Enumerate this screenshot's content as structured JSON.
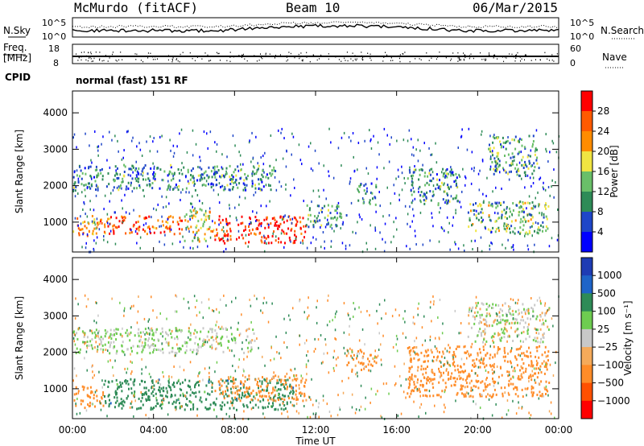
{
  "header": {
    "station": "McMurdo (fitACF)",
    "beam": "Beam 10",
    "date": "06/Mar/2015",
    "cpid_label": "CPID",
    "cpid_text": "normal (fast) 151 RF"
  },
  "aux_labels": {
    "nsky": "N.Sky",
    "nsearch": "N.Search",
    "freq": "Freq.",
    "freq_unit": "[MHz]",
    "nave": "Nave",
    "nsky_tick_top": "10^5",
    "nsky_tick_bot": "10^0",
    "freq_tick_top": "18",
    "freq_tick_bot": "8",
    "nave_tick_top": "60",
    "nave_tick_bot": "0"
  },
  "axes": {
    "xlabel": "Time UT",
    "ylabel": "Slant Range [km]",
    "x_ticks": [
      "00:00",
      "04:00",
      "08:00",
      "12:00",
      "16:00",
      "20:00",
      "00:00"
    ],
    "y_ticks": [
      "1000",
      "2000",
      "3000",
      "4000"
    ]
  },
  "colors": {
    "power": [
      "#0000ff",
      "#1e46c8",
      "#2e8b57",
      "#6abf69",
      "#f0e442",
      "#ff8c00",
      "#ff5a00",
      "#ff0000"
    ],
    "velocity": [
      "#ff0000",
      "#ff5000",
      "#ff8c28",
      "#f5aa5a",
      "#c8c8c8",
      "#6ecc50",
      "#2e8b57",
      "#1e64c8",
      "#1e3cb4"
    ]
  },
  "chart_data": [
    {
      "type": "heatmap",
      "panel": "power",
      "xlabel": "Time UT",
      "ylabel": "Slant Range [km]",
      "xlim": [
        0,
        24
      ],
      "ylim": [
        180,
        4600
      ],
      "colorbar_label": "Power [dB]",
      "colorbar_ticks": [
        "28",
        "24",
        "20",
        "16",
        "12",
        "8",
        "4"
      ],
      "regions": [
        {
          "t": [
            0.0,
            1.2
          ],
          "r": [
            600,
            1200
          ],
          "v": 22
        },
        {
          "t": [
            0.0,
            10.0
          ],
          "r": [
            1900,
            2600
          ],
          "v": 10
        },
        {
          "t": [
            1.2,
            5.5
          ],
          "r": [
            700,
            1200
          ],
          "v": 26
        },
        {
          "t": [
            5.5,
            7.0
          ],
          "r": [
            500,
            1400
          ],
          "v": 18
        },
        {
          "t": [
            7.0,
            11.5
          ],
          "r": [
            450,
            1200
          ],
          "v": 30
        },
        {
          "t": [
            11.5,
            13.5
          ],
          "r": [
            900,
            1500
          ],
          "v": 11
        },
        {
          "t": [
            14.0,
            15.0
          ],
          "r": [
            1500,
            2100
          ],
          "v": 9
        },
        {
          "t": [
            16.5,
            19.0
          ],
          "r": [
            1500,
            2500
          ],
          "v": 10
        },
        {
          "t": [
            19.5,
            23.5
          ],
          "r": [
            700,
            1600
          ],
          "v": 14
        },
        {
          "t": [
            20.5,
            23.0
          ],
          "r": [
            2300,
            3400
          ],
          "v": 11
        }
      ]
    },
    {
      "type": "heatmap",
      "panel": "velocity",
      "xlabel": "Time UT",
      "ylabel": "Slant Range [km]",
      "xlim": [
        0,
        24
      ],
      "ylim": [
        180,
        4600
      ],
      "colorbar_label": "Velocity [m s⁻¹]",
      "colorbar_ticks": [
        "1000",
        "500",
        "100",
        "25",
        "−25",
        "−100",
        "−500",
        "−1000"
      ],
      "regions": [
        {
          "t": [
            0.0,
            1.5
          ],
          "r": [
            500,
            1100
          ],
          "v": -250
        },
        {
          "t": [
            1.5,
            11.0
          ],
          "r": [
            450,
            1300
          ],
          "v": 300
        },
        {
          "t": [
            0.0,
            9.0
          ],
          "r": [
            2000,
            2700
          ],
          "v": 25
        },
        {
          "t": [
            7.0,
            11.5
          ],
          "r": [
            700,
            1400
          ],
          "v": -200
        },
        {
          "t": [
            13.5,
            15.0
          ],
          "r": [
            1500,
            2100
          ],
          "v": -300
        },
        {
          "t": [
            16.5,
            23.5
          ],
          "r": [
            800,
            2200
          ],
          "v": -250
        },
        {
          "t": [
            19.5,
            23.5
          ],
          "r": [
            2300,
            3400
          ],
          "v": 10
        }
      ]
    }
  ]
}
